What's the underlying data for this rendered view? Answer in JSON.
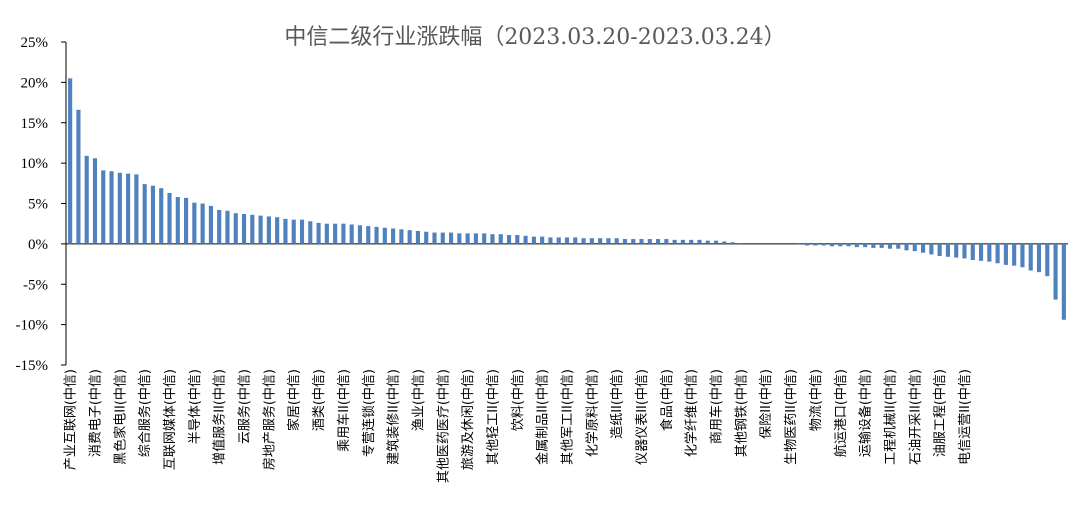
{
  "chart_data": {
    "type": "bar",
    "title": "中信二级行业涨跌幅（2023.03.20-2023.03.24）",
    "xlabel": "",
    "ylabel": "",
    "ylim": [
      -15,
      25
    ],
    "y_ticks": [
      25,
      20,
      15,
      10,
      5,
      0,
      -5,
      -10,
      -15
    ],
    "y_tick_format": "%",
    "bar_color": "#4F81BD",
    "grid": false,
    "legend": "none",
    "labeled_categories": [
      "产业互联网(中信)",
      "消费电子(中信)",
      "黑色家电II(中信)",
      "综合服务(中信)",
      "互联网媒体(中信)",
      "半导体(中信)",
      "增值服务II(中信)",
      "云服务(中信)",
      "房地产服务(中信)",
      "家居(中信)",
      "酒类(中信)",
      "乘用车II(中信)",
      "专营连锁(中信)",
      "建筑装修II(中信)",
      "渔业(中信)",
      "其他医药医疗(中信)",
      "旅游及休闲(中信)",
      "其他轻工II(中信)",
      "饮料(中信)",
      "金属制品II(中信)",
      "其他军工II(中信)",
      "化学原料(中信)",
      "造纸II(中信)",
      "仪器仪表II(中信)",
      "食品(中信)",
      "化学纤维(中信)",
      "商用车(中信)",
      "其他钢铁(中信)",
      "保险II(中信)",
      "生物医药II(中信)",
      "物流(中信)",
      "航运港口(中信)",
      "运输设备(中信)",
      "工程机械II(中信)",
      "石油开采II(中信)",
      "油服工程(中信)",
      "电信运营II(中信)"
    ],
    "values": [
      20.5,
      16.6,
      10.9,
      10.6,
      9.1,
      9.0,
      8.8,
      8.7,
      8.6,
      7.4,
      7.2,
      6.9,
      6.3,
      5.8,
      5.7,
      5.1,
      5.0,
      4.7,
      4.2,
      4.1,
      3.8,
      3.7,
      3.6,
      3.5,
      3.4,
      3.3,
      3.1,
      3.0,
      3.0,
      2.8,
      2.6,
      2.5,
      2.5,
      2.5,
      2.4,
      2.3,
      2.2,
      2.1,
      2.0,
      1.9,
      1.8,
      1.7,
      1.6,
      1.5,
      1.4,
      1.4,
      1.4,
      1.3,
      1.3,
      1.3,
      1.3,
      1.2,
      1.2,
      1.1,
      1.1,
      1.0,
      0.9,
      0.9,
      0.8,
      0.8,
      0.8,
      0.8,
      0.7,
      0.7,
      0.7,
      0.7,
      0.7,
      0.6,
      0.6,
      0.6,
      0.6,
      0.6,
      0.6,
      0.5,
      0.5,
      0.5,
      0.5,
      0.4,
      0.4,
      0.3,
      0.2,
      0.1,
      0.0,
      0.0,
      0.0,
      0.0,
      0.0,
      0.0,
      -0.1,
      -0.2,
      -0.2,
      -0.2,
      -0.3,
      -0.3,
      -0.3,
      -0.4,
      -0.4,
      -0.5,
      -0.5,
      -0.6,
      -0.6,
      -0.8,
      -0.9,
      -1.1,
      -1.3,
      -1.5,
      -1.6,
      -1.7,
      -1.8,
      -2.0,
      -2.1,
      -2.2,
      -2.4,
      -2.6,
      -2.7,
      -2.9,
      -3.3,
      -3.5,
      -4.0,
      -6.9,
      -9.4
    ]
  }
}
